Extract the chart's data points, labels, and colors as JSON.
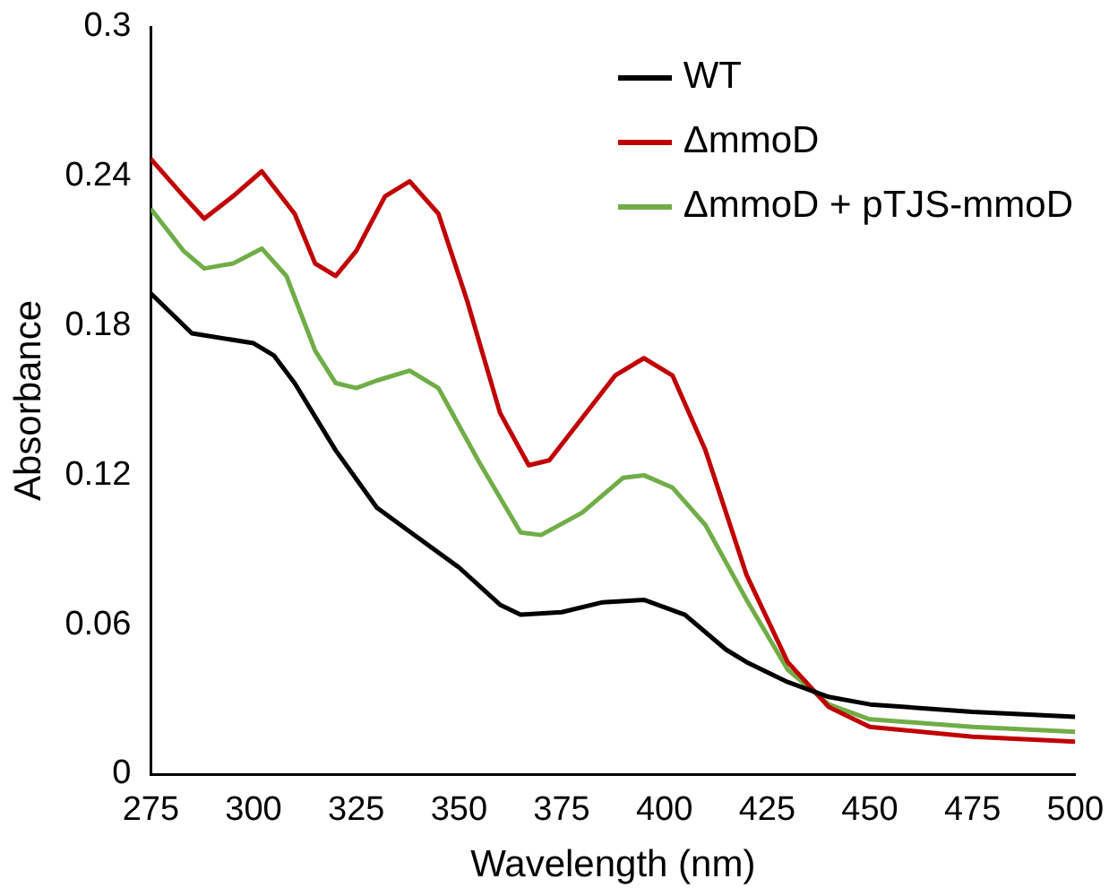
{
  "chart_data": {
    "type": "line",
    "xlabel": "Wavelength (nm)",
    "ylabel": "Absorbance",
    "xlim": [
      275,
      500
    ],
    "xticks": [
      275,
      300,
      325,
      350,
      375,
      400,
      425,
      450,
      475,
      500
    ],
    "ylim": [
      0,
      0.3
    ],
    "yticks": [
      0,
      0.06,
      0.12,
      0.18,
      0.24,
      0.3
    ],
    "grid": false,
    "legend": "top right",
    "marker": "none",
    "line_style": "solid",
    "series": [
      {
        "name": "WT",
        "color": "#000000",
        "x": [
          275,
          285,
          300,
          305,
          310,
          320,
          330,
          340,
          350,
          360,
          365,
          375,
          385,
          395,
          405,
          415,
          420,
          430,
          440,
          450,
          475,
          500
        ],
        "values": [
          0.193,
          0.177,
          0.173,
          0.168,
          0.157,
          0.13,
          0.107,
          0.095,
          0.083,
          0.068,
          0.064,
          0.065,
          0.069,
          0.07,
          0.064,
          0.05,
          0.045,
          0.037,
          0.031,
          0.028,
          0.025,
          0.023
        ]
      },
      {
        "name": "ΔmmoD",
        "color": "#c00000",
        "x": [
          275,
          283,
          288,
          295,
          302,
          310,
          315,
          320,
          325,
          332,
          338,
          345,
          352,
          360,
          367,
          372,
          380,
          388,
          395,
          402,
          410,
          420,
          430,
          440,
          450,
          475,
          500
        ],
        "values": [
          0.247,
          0.232,
          0.223,
          0.232,
          0.242,
          0.225,
          0.205,
          0.2,
          0.21,
          0.232,
          0.238,
          0.225,
          0.19,
          0.145,
          0.124,
          0.126,
          0.143,
          0.16,
          0.167,
          0.16,
          0.13,
          0.08,
          0.045,
          0.027,
          0.019,
          0.015,
          0.013
        ]
      },
      {
        "name": "ΔmmoD + pTJS-mmoD",
        "color": "#70ad47",
        "x": [
          275,
          283,
          288,
          295,
          302,
          308,
          315,
          320,
          325,
          330,
          338,
          345,
          355,
          365,
          370,
          380,
          390,
          395,
          402,
          410,
          420,
          430,
          440,
          450,
          475,
          500
        ],
        "values": [
          0.227,
          0.21,
          0.203,
          0.205,
          0.211,
          0.2,
          0.17,
          0.157,
          0.155,
          0.158,
          0.162,
          0.155,
          0.125,
          0.097,
          0.096,
          0.105,
          0.119,
          0.12,
          0.115,
          0.1,
          0.07,
          0.042,
          0.028,
          0.022,
          0.019,
          0.017
        ]
      }
    ]
  }
}
